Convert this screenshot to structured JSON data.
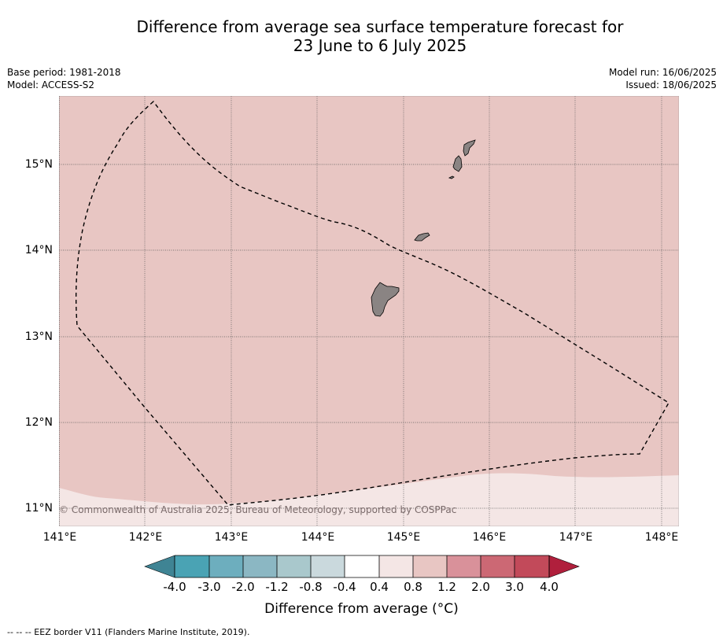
{
  "title": {
    "line1": "Difference from average sea surface temperature forecast for",
    "line2": "23 June to 6 July 2025"
  },
  "meta_left": {
    "base_period": "Base period: 1981-2018",
    "model": "Model: ACCESS-S2"
  },
  "meta_right": {
    "model_run": "Model run: 16/06/2025",
    "issued": "Issued: 18/06/2025"
  },
  "map": {
    "lat_labels": [
      "15°N",
      "14°N",
      "13°N",
      "12°N",
      "11°N"
    ],
    "lon_labels": [
      "141°E",
      "142°E",
      "143°E",
      "144°E",
      "145°E",
      "146°E",
      "147°E",
      "148°E"
    ],
    "copyright": "© Commonwealth of Australia 2025, Bureau of Meteorology, supported by COSPPac",
    "fill_colors": {
      "anomaly_0.8_to_1.2": "#e8c6c3",
      "anomaly_0.4_to_0.8": "#f4e6e5",
      "land": "#8a8483"
    }
  },
  "colorbar": {
    "title": "Difference from average (°C)",
    "tick_labels": [
      "-4.0",
      "-3.0",
      "-2.0",
      "-1.2",
      "-0.8",
      "-0.4",
      "0.4",
      "0.8",
      "1.2",
      "2.0",
      "3.0",
      "4.0"
    ],
    "colors": [
      "#3f8494",
      "#4aa3b4",
      "#6daebe",
      "#8bb7c3",
      "#a9c8cc",
      "#cad9dd",
      "#ffffff",
      "#f4e6e5",
      "#e8c6c3",
      "#d9919a",
      "#cc6874",
      "#c24a5a",
      "#b01f3c"
    ]
  },
  "legend_note": "--  --  -- EEZ border V11 (Flanders Marine Institute, 2019)."
}
